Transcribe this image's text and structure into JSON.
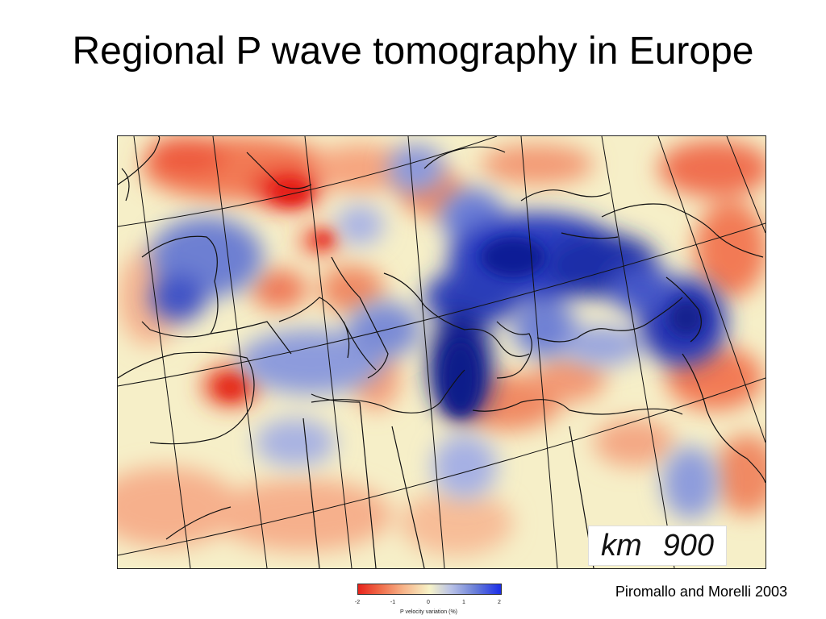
{
  "slide": {
    "title": "Regional P wave tomography in Europe",
    "citation": "Piromallo and Morelli 2003"
  },
  "map": {
    "depth_unit": "km",
    "depth_value": "900",
    "colors": {
      "slow": "#e8231c",
      "neutral": "#f7f3c8",
      "fast": "#1a2de8",
      "coastline": "#111111"
    }
  },
  "colorbar": {
    "ticks": [
      "-2",
      "-1",
      "0",
      "1",
      "2"
    ],
    "label": "P velocity variation (%)"
  }
}
